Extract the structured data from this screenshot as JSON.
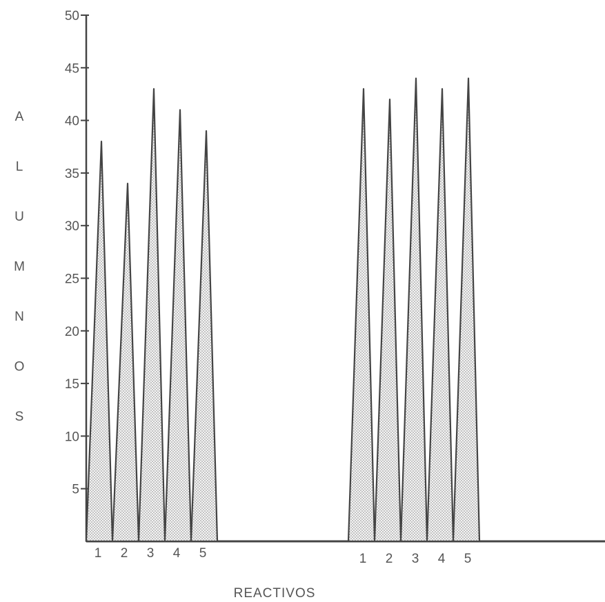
{
  "chart_data": {
    "type": "area",
    "ylabel": "ALUMNOS",
    "xlabel": "REACTIVOS",
    "ylim": [
      0,
      50
    ],
    "yticks": [
      "5",
      "10",
      "15",
      "20",
      "25",
      "30",
      "35",
      "40",
      "45",
      "50"
    ],
    "grid": false,
    "groups": [
      {
        "categories": [
          "1",
          "2",
          "3",
          "4",
          "5"
        ],
        "values": [
          38,
          34,
          43,
          41,
          39
        ]
      },
      {
        "categories": [
          "1",
          "2",
          "3",
          "4",
          "5"
        ],
        "values": [
          43,
          42,
          44,
          43,
          44
        ]
      }
    ]
  }
}
